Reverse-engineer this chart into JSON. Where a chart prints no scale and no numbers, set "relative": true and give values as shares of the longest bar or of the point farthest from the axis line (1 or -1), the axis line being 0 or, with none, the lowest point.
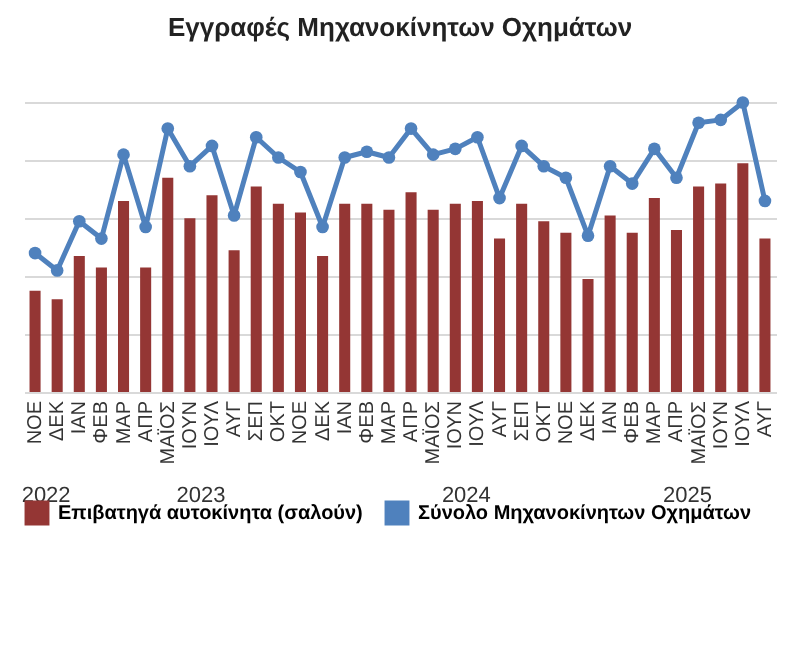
{
  "chart_data": {
    "type": "bar",
    "title": "Εγγραφές Μηχανοκίνητων Οχημάτων",
    "relative": true,
    "grid": "y",
    "legend": "bottom",
    "categories": [
      "ΝΟΕ",
      "ΔΕΚ",
      "ΙΑΝ",
      "ΦΕΒ",
      "ΜΑΡ",
      "ΑΠΡ",
      "ΜΑΪΟΣ",
      "ΙΟΥΝ",
      "ΙΟΥΛ",
      "ΑΥΓ",
      "ΣΕΠ",
      "ΟΚΤ",
      "ΝΟΕ",
      "ΔΕΚ",
      "ΙΑΝ",
      "ΦΕΒ",
      "ΜΑΡ",
      "ΑΠΡ",
      "ΜΑΪΟΣ",
      "ΙΟΥΝ",
      "ΙΟΥΛ",
      "ΑΥΓ",
      "ΣΕΠ",
      "ΟΚΤ",
      "ΝΟΕ",
      "ΔΕΚ",
      "ΙΑΝ",
      "ΦΕΒ",
      "ΜΑΡ",
      "ΑΠΡ",
      "ΜΑΪΟΣ",
      "ΙΟΥΝ",
      "ΙΟΥΛ",
      "ΑΥΓ"
    ],
    "series": [
      {
        "name": "Επιβατηγά αυτοκίνητα (σαλούν)",
        "color": "#943634",
        "values": [
          0.35,
          0.32,
          0.47,
          0.43,
          0.66,
          0.43,
          0.74,
          0.6,
          0.68,
          0.49,
          0.71,
          0.65,
          0.62,
          0.47,
          0.65,
          0.65,
          0.63,
          0.69,
          0.63,
          0.65,
          0.66,
          0.53,
          0.65,
          0.59,
          0.55,
          0.39,
          0.61,
          0.55,
          0.67,
          0.56,
          0.71,
          0.72,
          0.79,
          0.53
        ]
      },
      {
        "name": "Σύνολο Μηχανοκίνητων Οχημάτων",
        "color": "#4f81bd",
        "type": "line",
        "marker": "circle",
        "values": [
          0.48,
          0.42,
          0.59,
          0.53,
          0.82,
          0.57,
          0.91,
          0.78,
          0.85,
          0.61,
          0.88,
          0.81,
          0.76,
          0.57,
          0.81,
          0.83,
          0.81,
          0.91,
          0.82,
          0.84,
          0.88,
          0.67,
          0.85,
          0.78,
          0.74,
          0.54,
          0.78,
          0.72,
          0.84,
          0.74,
          0.93,
          0.94,
          1.0,
          0.66
        ]
      }
    ],
    "annotations": [
      "2022",
      "2023",
      "2024",
      "2025"
    ]
  }
}
